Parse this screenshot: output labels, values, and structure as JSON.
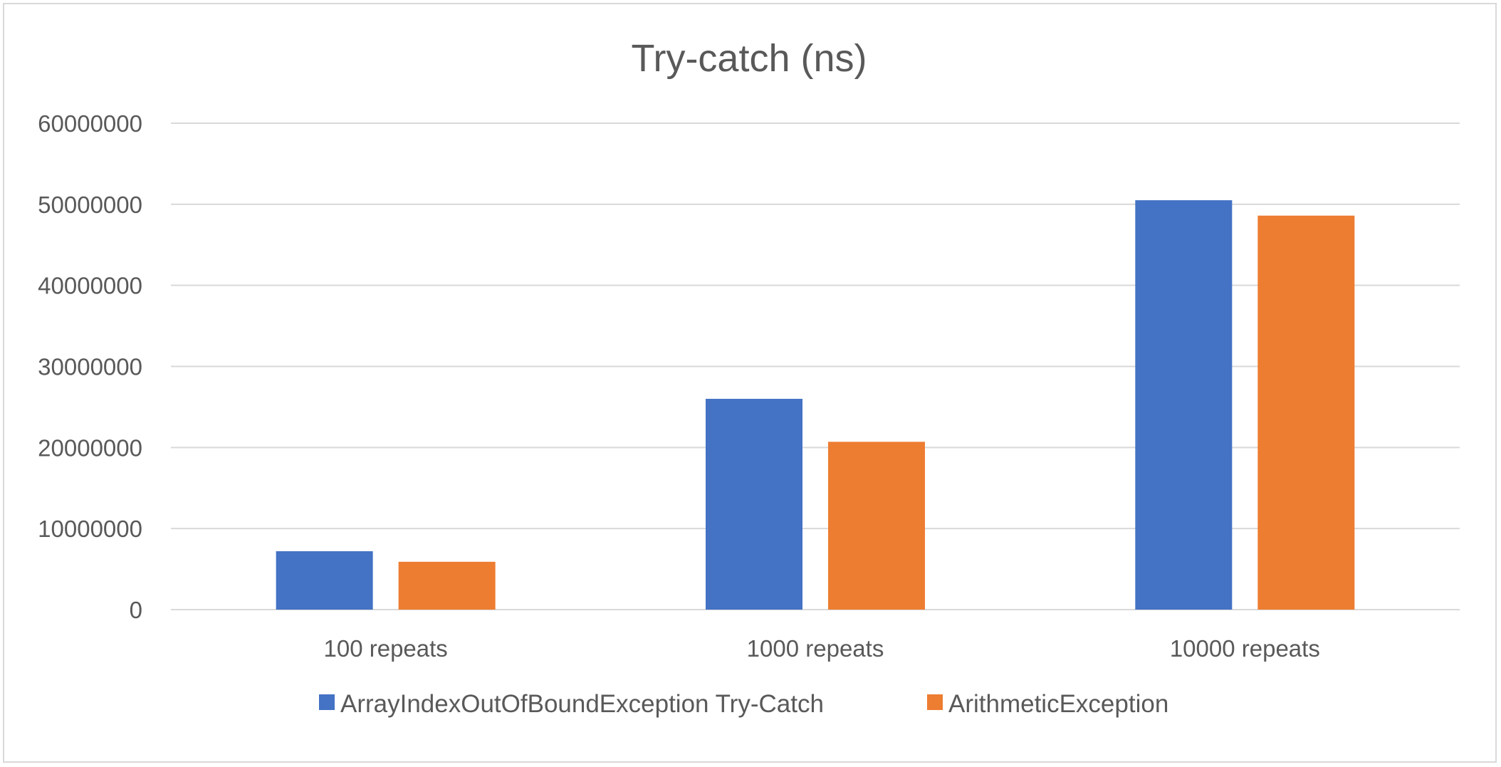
{
  "chart_data": {
    "type": "bar",
    "title": "Try-catch (ns)",
    "xlabel": "",
    "ylabel": "",
    "categories": [
      "100 repeats",
      "1000 repeats",
      "10000 repeats"
    ],
    "series": [
      {
        "name": "ArrayIndexOutOfBoundException Try-Catch",
        "color": "#4472C4",
        "values": [
          7200000,
          26000000,
          50500000
        ]
      },
      {
        "name": "ArithmeticException",
        "color": "#ED7D31",
        "values": [
          5900000,
          20700000,
          48600000
        ]
      }
    ],
    "ylim": [
      0,
      60000000
    ],
    "yticks": [
      "0",
      "10000000",
      "20000000",
      "30000000",
      "40000000",
      "50000000",
      "60000000"
    ],
    "grid": true,
    "legend_position": "bottom"
  }
}
